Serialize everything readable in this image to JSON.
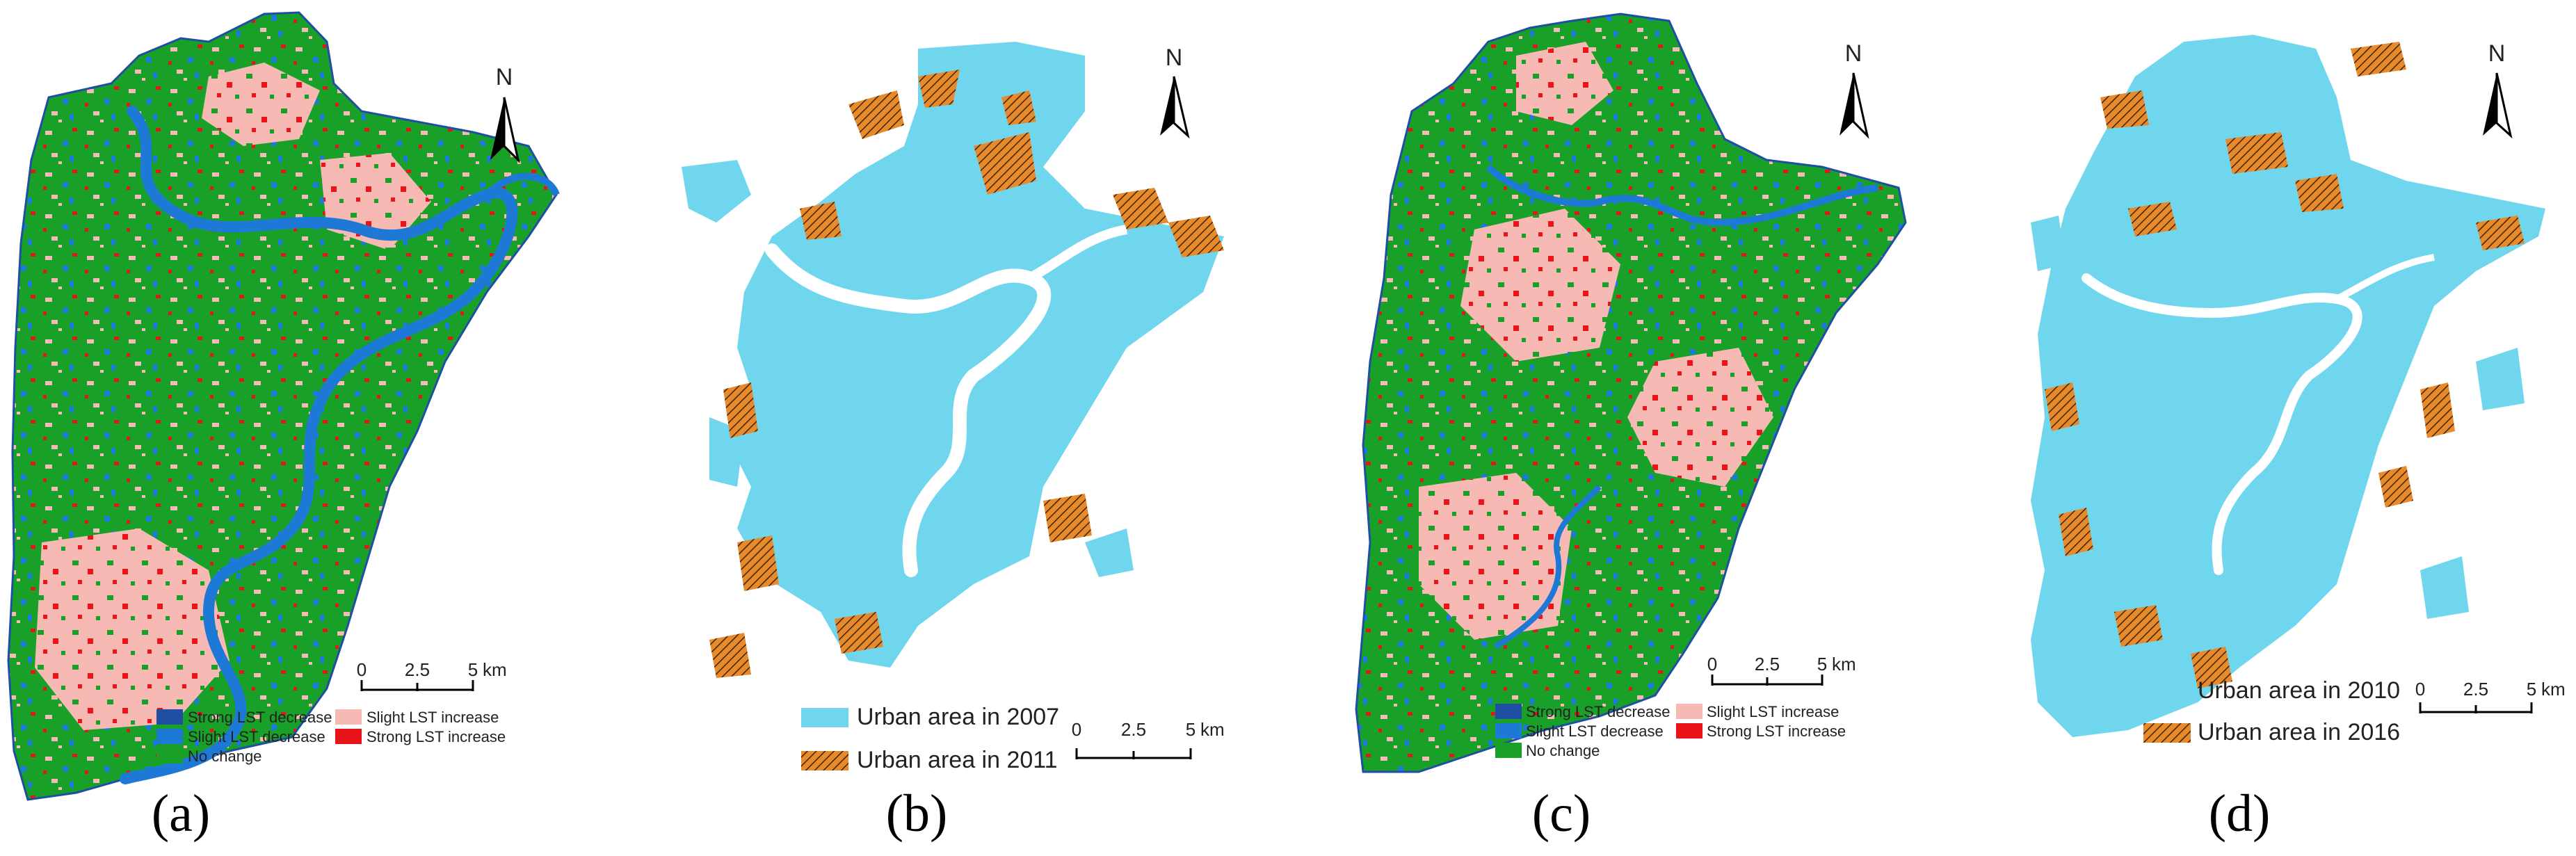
{
  "panels": [
    {
      "id": "a",
      "caption": "(a)",
      "type": "lst_change",
      "north_label": "N",
      "scale": {
        "ticks": [
          "0",
          "2.5",
          "5"
        ],
        "unit": "km"
      },
      "legend": [
        {
          "label": "Strong LST decrease",
          "color": "#1f4fa3"
        },
        {
          "label": "Slight LST increase",
          "color": "#f7b9b4"
        },
        {
          "label": "Slight LST decrease",
          "color": "#1e78d6"
        },
        {
          "label": "Strong LST increase",
          "color": "#e8141a"
        },
        {
          "label": "No change",
          "color": "#18a028"
        }
      ]
    },
    {
      "id": "b",
      "caption": "(b)",
      "type": "urban_expansion",
      "north_label": "N",
      "scale": {
        "ticks": [
          "0",
          "2.5",
          "5"
        ],
        "unit": "km"
      },
      "legend": [
        {
          "label": "Urban area in 2007",
          "color": "#6fd6ee"
        },
        {
          "label": "Urban area in 2011",
          "color": "#e8892a",
          "pattern": "hatch"
        }
      ]
    },
    {
      "id": "c",
      "caption": "(c)",
      "type": "lst_change",
      "north_label": "N",
      "scale": {
        "ticks": [
          "0",
          "2.5",
          "5"
        ],
        "unit": "km"
      },
      "legend": [
        {
          "label": "Strong LST decrease",
          "color": "#1f4fa3"
        },
        {
          "label": "Slight LST increase",
          "color": "#f7b9b4"
        },
        {
          "label": "Slight LST decrease",
          "color": "#1e78d6"
        },
        {
          "label": "Strong LST increase",
          "color": "#e8141a"
        },
        {
          "label": "No change",
          "color": "#18a028"
        }
      ]
    },
    {
      "id": "d",
      "caption": "(d)",
      "type": "urban_expansion",
      "north_label": "N",
      "scale": {
        "ticks": [
          "0",
          "2.5",
          "5"
        ],
        "unit": "km"
      },
      "legend": [
        {
          "label": "Urban area in 2010",
          "color": "#6fd6ee"
        },
        {
          "label": "Urban area in 2016",
          "color": "#e8892a",
          "pattern": "hatch"
        }
      ]
    }
  ]
}
